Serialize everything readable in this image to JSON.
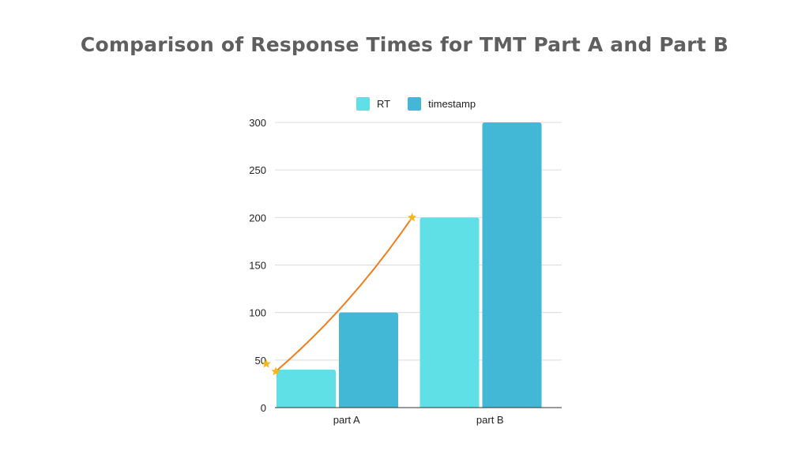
{
  "chart_data": {
    "type": "bar",
    "title": "Comparison of Response Times for TMT Part A and Part B",
    "categories": [
      "part A",
      "part B"
    ],
    "series": [
      {
        "name": "RT",
        "values": [
          40,
          200
        ],
        "color": "#5ee0e6"
      },
      {
        "name": "timestamp",
        "values": [
          100,
          300
        ],
        "color": "#42b8d6"
      }
    ],
    "overlay_line": {
      "color": "#f07d1a",
      "marker": "star",
      "marker_color": "#f5b81c",
      "points": [
        [
          0.05,
          38
        ],
        [
          1.05,
          200
        ]
      ]
    },
    "extra_marker": {
      "y": 46
    },
    "ylim": [
      0,
      300
    ],
    "yticks": [
      0,
      50,
      100,
      150,
      200,
      250,
      300
    ],
    "grid": true,
    "legend_position": "top"
  }
}
